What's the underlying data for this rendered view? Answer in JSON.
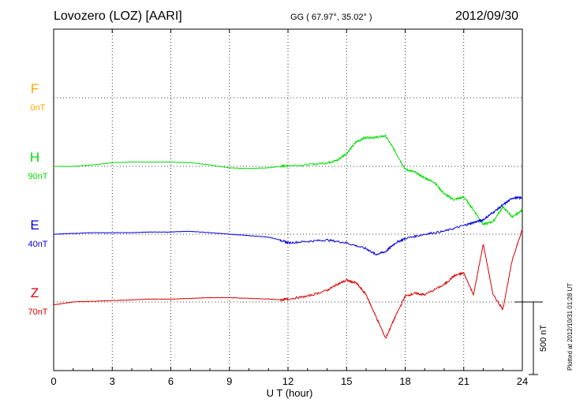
{
  "header": {
    "title": "Lovozero (LOZ)  [AARI]",
    "coords": "GG ( 67.97°,  35.02° )",
    "date": "2012/09/30"
  },
  "footer": {
    "plotted": "Plotted at 2012/10/31 01:28 UT"
  },
  "chart_data": {
    "type": "line",
    "title": "Lovozero (LOZ)  [AARI]",
    "xlabel": "U T (hour)",
    "xlim": [
      0,
      24
    ],
    "xticks": [
      0,
      3,
      6,
      9,
      12,
      15,
      18,
      21,
      24
    ],
    "xtick_labels": [
      "0",
      "3",
      "6",
      "9",
      "12",
      "15",
      "18",
      "21",
      "24"
    ],
    "grid": true,
    "scale_bar": {
      "value": 500,
      "label": "500 nT"
    },
    "series": [
      {
        "name": "F",
        "baseline": "0nT",
        "color": "#ffa500",
        "data": []
      },
      {
        "name": "H",
        "baseline": "90nT",
        "color": "#00dd00",
        "x": [
          0,
          1,
          2,
          3,
          4,
          5,
          6,
          7,
          8,
          9,
          10,
          11,
          11.6,
          12,
          13,
          14,
          14.5,
          15,
          15.5,
          16,
          16.5,
          17,
          17.5,
          18,
          18.5,
          19,
          19.5,
          20,
          20.5,
          21,
          21.5,
          22,
          22.5,
          23,
          23.5,
          24
        ],
        "y": [
          0,
          0,
          10,
          25,
          30,
          30,
          30,
          25,
          10,
          -10,
          -15,
          -10,
          0,
          5,
          10,
          25,
          40,
          90,
          170,
          200,
          200,
          210,
          100,
          -20,
          -40,
          -80,
          -110,
          -190,
          -230,
          -210,
          -300,
          -400,
          -380,
          -280,
          -350,
          -300
        ]
      },
      {
        "name": "E",
        "baseline": "40nT",
        "color": "#0000dd",
        "x": [
          0,
          1,
          2,
          3,
          4,
          5,
          6,
          7,
          8,
          9,
          10,
          11,
          11.6,
          12,
          13,
          14,
          15,
          16,
          16.5,
          17,
          17.5,
          18,
          19,
          20,
          21,
          21.5,
          22,
          22.5,
          23,
          23.5,
          24
        ],
        "y": [
          0,
          5,
          10,
          10,
          10,
          15,
          15,
          20,
          10,
          0,
          -10,
          -20,
          -40,
          -60,
          -50,
          -40,
          -60,
          -100,
          -140,
          -120,
          -60,
          -30,
          0,
          20,
          60,
          80,
          100,
          150,
          200,
          250,
          250
        ]
      },
      {
        "name": "Z",
        "baseline": "70nT",
        "color": "#dd0000",
        "x": [
          0,
          0.5,
          1,
          2,
          3,
          4,
          5,
          6,
          7,
          8,
          9,
          10,
          11,
          11.6,
          12,
          13,
          14,
          14.5,
          15,
          15.5,
          16,
          16.5,
          17,
          17.5,
          18,
          18.5,
          19,
          20,
          20.5,
          21,
          21.5,
          22,
          22.5,
          23,
          23.5,
          24
        ],
        "y": [
          -20,
          -10,
          0,
          5,
          10,
          15,
          20,
          20,
          25,
          30,
          30,
          25,
          20,
          15,
          20,
          40,
          80,
          120,
          150,
          130,
          50,
          -100,
          -250,
          -100,
          40,
          60,
          50,
          120,
          180,
          200,
          50,
          400,
          50,
          -50,
          300,
          500
        ]
      }
    ]
  }
}
